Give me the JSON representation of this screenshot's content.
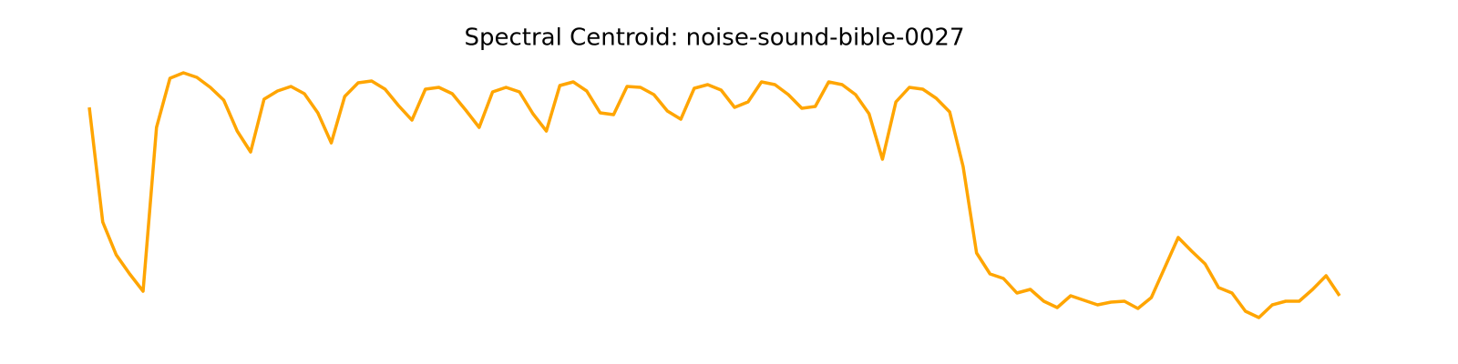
{
  "chart_data": {
    "type": "line",
    "title": "Spectral Centroid: noise-sound-bible-0027",
    "color": "#ffa500",
    "values": [
      282,
      156,
      120,
      99,
      80,
      260,
      314,
      320,
      315,
      304,
      290,
      256,
      233,
      291,
      300,
      305,
      297,
      276,
      243,
      294,
      309,
      311,
      302,
      284,
      268,
      302,
      304,
      297,
      279,
      260,
      299,
      304,
      299,
      275,
      256,
      306,
      310,
      300,
      276,
      274,
      305,
      304,
      296,
      278,
      269,
      303,
      307,
      301,
      282,
      288,
      310,
      307,
      296,
      281,
      283,
      310,
      307,
      296,
      275,
      225,
      288,
      304,
      302,
      292,
      277,
      217,
      122,
      99,
      94,
      78,
      82,
      69,
      62,
      75,
      70,
      65,
      68,
      69,
      61,
      73,
      106,
      139,
      124,
      110,
      84,
      78,
      58,
      51,
      65,
      69,
      69,
      82,
      97,
      75
    ]
  }
}
